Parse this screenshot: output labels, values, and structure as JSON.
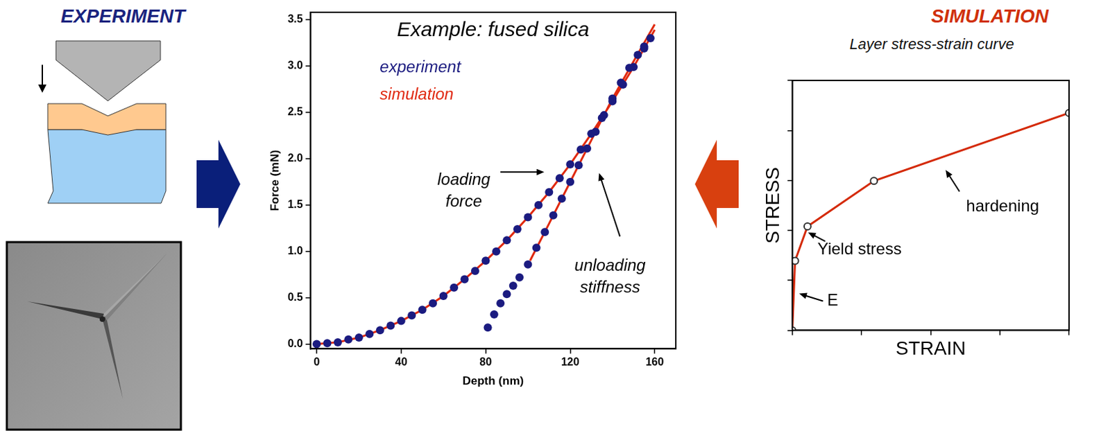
{
  "experiment": {
    "title": "EXPERIMENT"
  },
  "simulation": {
    "title": "SIMULATION"
  },
  "chart_data": [
    {
      "type": "scatter",
      "title": "Example: fused silica",
      "x_label": "Depth (nm)",
      "y_label": "Force (mN)",
      "xlim": [
        -3,
        170
      ],
      "xticks": [
        0,
        40,
        80,
        120,
        160
      ],
      "ylim": [
        -0.05,
        3.58
      ],
      "yticks": [
        {
          "value": 0,
          "label": "0.0"
        },
        0.5,
        {
          "value": 1,
          "label": "1.0"
        },
        1.5,
        {
          "value": 2,
          "label": "2.0"
        },
        2.5,
        {
          "value": 3,
          "label": "3.0"
        },
        3.5
      ],
      "grid": false,
      "legend": "upper left",
      "annotations": [
        {
          "text": "loading force"
        },
        {
          "text": "unloading stiffness"
        }
      ],
      "series": [
        {
          "name": "experiment",
          "color": "#1b1b80",
          "marker": "circle",
          "line_style": "none",
          "x": [
            0,
            5,
            10,
            15,
            20,
            25,
            30,
            35,
            40,
            45,
            50,
            55,
            60,
            65,
            70,
            75,
            80,
            85,
            90,
            95,
            100,
            105,
            110,
            115,
            120,
            125,
            130,
            135,
            140,
            145,
            150,
            155,
            158,
            155,
            152,
            148,
            144,
            140,
            136,
            132,
            128,
            124,
            120,
            116,
            112,
            108,
            104,
            100,
            96,
            93,
            90,
            87,
            84,
            81
          ],
          "values": [
            0,
            0.01,
            0.02,
            0.05,
            0.07,
            0.11,
            0.15,
            0.2,
            0.25,
            0.31,
            0.37,
            0.44,
            0.52,
            0.61,
            0.7,
            0.79,
            0.9,
            1.0,
            1.12,
            1.24,
            1.37,
            1.5,
            1.64,
            1.79,
            1.94,
            2.1,
            2.27,
            2.44,
            2.62,
            2.8,
            2.99,
            3.19,
            3.3,
            3.21,
            3.12,
            2.98,
            2.82,
            2.65,
            2.47,
            2.29,
            2.11,
            1.93,
            1.75,
            1.57,
            1.39,
            1.21,
            1.04,
            0.86,
            0.72,
            0.63,
            0.54,
            0.44,
            0.32,
            0.18
          ]
        },
        {
          "name": "simulation",
          "color": "#e02a10",
          "marker": "none",
          "line_style": "solid",
          "x": [
            0,
            10,
            20,
            30,
            40,
            50,
            60,
            70,
            80,
            90,
            100,
            110,
            120,
            130,
            140,
            150,
            160,
            null,
            101,
            110,
            120,
            130,
            140,
            150,
            160
          ],
          "values": [
            0,
            0.02,
            0.07,
            0.15,
            0.25,
            0.37,
            0.52,
            0.7,
            0.9,
            1.12,
            1.37,
            1.64,
            1.94,
            2.27,
            2.62,
            2.99,
            3.39,
            null,
            0.9,
            1.3,
            1.75,
            2.2,
            2.65,
            3.05,
            3.45
          ]
        }
      ]
    },
    {
      "type": "line",
      "title": "Layer stress-strain curve",
      "x_label": "STRAIN",
      "y_label": "STRESS",
      "xlim": [
        0,
        4
      ],
      "xticks": [
        0,
        1,
        2,
        3,
        4
      ],
      "ylim": [
        0,
        5
      ],
      "yticks": [
        0,
        1,
        2,
        3,
        4,
        5
      ],
      "grid": false,
      "tick_labels": false,
      "annotations": [
        {
          "text": "hardening"
        },
        {
          "text": "Yield stress"
        },
        {
          "text": "E"
        }
      ],
      "series": [
        {
          "color": "#d42a0a",
          "marker": "circle",
          "line_style": "solid",
          "x": [
            0,
            0.04,
            0.22,
            1.18,
            4
          ],
          "values": [
            0,
            1.39,
            2.08,
            2.99,
            4.35
          ]
        }
      ]
    }
  ]
}
